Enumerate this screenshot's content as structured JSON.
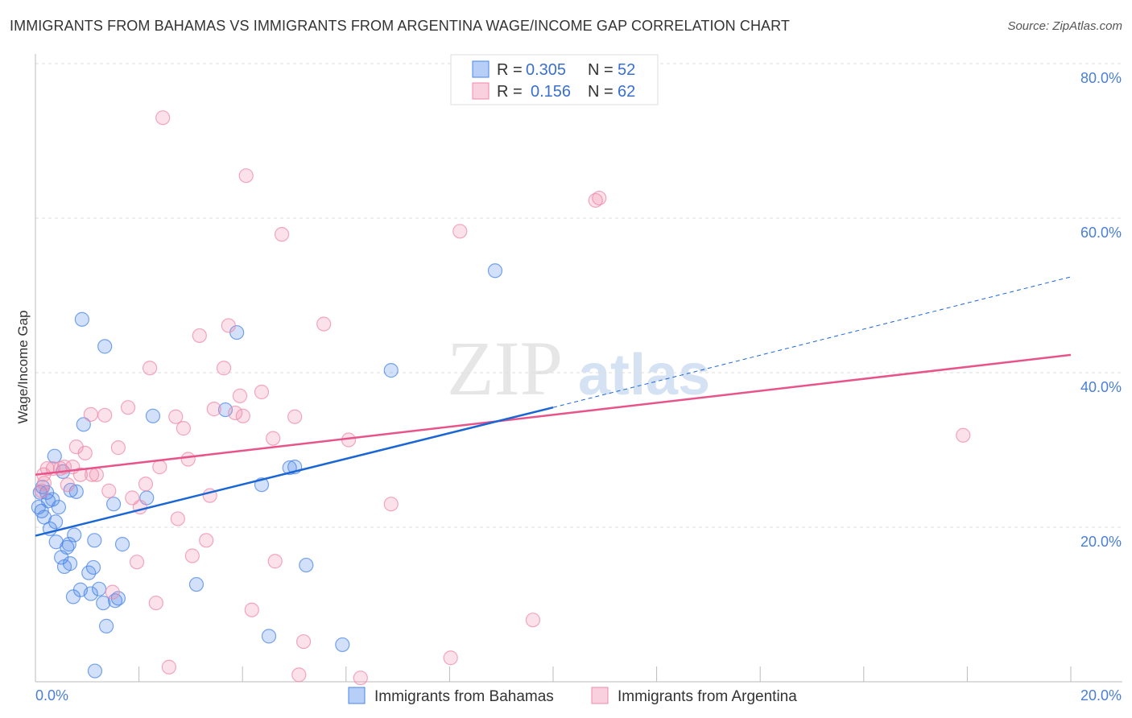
{
  "chart_data": {
    "type": "scatter",
    "title": "IMMIGRANTS FROM BAHAMAS VS IMMIGRANTS FROM ARGENTINA WAGE/INCOME GAP CORRELATION CHART",
    "source": "Source: ZipAtlas.com",
    "xlabel": "",
    "ylabel": "Wage/Income Gap",
    "xlim": [
      0,
      20
    ],
    "ylim": [
      0,
      80
    ],
    "x_tick_labels": [
      "0.0%",
      "20.0%"
    ],
    "y_ticks": [
      20,
      40,
      60,
      80
    ],
    "y_tick_labels": [
      "20.0%",
      "40.0%",
      "60.0%",
      "80.0%"
    ],
    "grid": true,
    "watermark": "ZIPatlas",
    "legend_stats": [
      {
        "r_label": "R = ",
        "r": "0.305",
        "n_label": "N = ",
        "n": "52"
      },
      {
        "r_label": "R = ",
        "r": "0.156",
        "n_label": "N = ",
        "n": "62"
      }
    ],
    "series": [
      {
        "name": "Immigrants from Bahamas",
        "color": "#4a86e8",
        "line_color": "#1a66d6",
        "trend": {
          "x0": 0,
          "y0": 18.9,
          "x_solid_end": 10,
          "y_solid_end": 35.5,
          "x1": 20,
          "y1": 52.4
        },
        "points": [
          [
            1.15,
            1.4
          ],
          [
            1.37,
            7.2
          ],
          [
            1.31,
            10.2
          ],
          [
            1.54,
            10.5
          ],
          [
            1.6,
            10.8
          ],
          [
            0.73,
            11.0
          ],
          [
            1.07,
            11.4
          ],
          [
            0.87,
            11.9
          ],
          [
            1.23,
            12.0
          ],
          [
            1.03,
            14.1
          ],
          [
            1.12,
            14.8
          ],
          [
            0.56,
            14.9
          ],
          [
            0.67,
            15.3
          ],
          [
            0.5,
            16.1
          ],
          [
            0.61,
            17.4
          ],
          [
            0.65,
            17.8
          ],
          [
            0.4,
            18.1
          ],
          [
            0.75,
            19.0
          ],
          [
            1.14,
            18.3
          ],
          [
            1.68,
            17.8
          ],
          [
            0.28,
            19.8
          ],
          [
            0.39,
            20.7
          ],
          [
            0.17,
            21.3
          ],
          [
            0.12,
            22.1
          ],
          [
            0.06,
            22.6
          ],
          [
            0.45,
            22.6
          ],
          [
            0.25,
            23.4
          ],
          [
            0.33,
            23.6
          ],
          [
            0.22,
            24.5
          ],
          [
            0.79,
            24.6
          ],
          [
            0.68,
            24.8
          ],
          [
            0.14,
            25.2
          ],
          [
            0.37,
            29.2
          ],
          [
            0.93,
            33.3
          ],
          [
            2.27,
            34.4
          ],
          [
            1.51,
            23.0
          ],
          [
            2.15,
            23.8
          ],
          [
            3.11,
            12.6
          ],
          [
            3.67,
            35.2
          ],
          [
            3.89,
            45.2
          ],
          [
            1.34,
            43.4
          ],
          [
            0.9,
            46.9
          ],
          [
            4.37,
            25.5
          ],
          [
            4.91,
            27.7
          ],
          [
            5.01,
            27.8
          ],
          [
            5.23,
            15.1
          ],
          [
            4.51,
            5.9
          ],
          [
            5.93,
            4.8
          ],
          [
            6.87,
            40.3
          ],
          [
            8.88,
            53.2
          ],
          [
            0.53,
            27.2
          ],
          [
            0.09,
            24.5
          ]
        ]
      },
      {
        "name": "Immigrants from Argentina",
        "color": "#f08aaa",
        "line_color": "#e8548a",
        "trend": {
          "x0": 0,
          "y0": 26.8,
          "x1": 20,
          "y1": 42.3
        },
        "points": [
          [
            2.46,
            73.0
          ],
          [
            4.07,
            65.5
          ],
          [
            4.76,
            57.9
          ],
          [
            10.82,
            62.3
          ],
          [
            10.89,
            62.6
          ],
          [
            8.2,
            58.3
          ],
          [
            5.57,
            46.3
          ],
          [
            3.73,
            46.1
          ],
          [
            3.17,
            44.8
          ],
          [
            2.21,
            40.6
          ],
          [
            3.64,
            40.6
          ],
          [
            1.79,
            35.5
          ],
          [
            1.34,
            34.5
          ],
          [
            1.07,
            34.6
          ],
          [
            2.71,
            34.3
          ],
          [
            3.45,
            35.3
          ],
          [
            3.86,
            34.8
          ],
          [
            4.01,
            34.4
          ],
          [
            3.95,
            37.0
          ],
          [
            4.37,
            37.5
          ],
          [
            5.01,
            34.3
          ],
          [
            2.86,
            32.8
          ],
          [
            4.59,
            31.5
          ],
          [
            6.05,
            31.3
          ],
          [
            0.79,
            30.4
          ],
          [
            1.6,
            30.3
          ],
          [
            0.96,
            29.6
          ],
          [
            2.95,
            28.8
          ],
          [
            0.23,
            27.6
          ],
          [
            0.34,
            27.6
          ],
          [
            0.48,
            27.6
          ],
          [
            0.56,
            27.8
          ],
          [
            0.72,
            27.8
          ],
          [
            0.87,
            26.8
          ],
          [
            1.18,
            26.8
          ],
          [
            1.09,
            26.8
          ],
          [
            2.4,
            27.8
          ],
          [
            0.17,
            25.7
          ],
          [
            0.62,
            25.5
          ],
          [
            1.42,
            24.7
          ],
          [
            2.13,
            25.6
          ],
          [
            1.87,
            23.8
          ],
          [
            2.02,
            22.6
          ],
          [
            3.37,
            24.1
          ],
          [
            6.87,
            23.0
          ],
          [
            2.75,
            21.1
          ],
          [
            3.3,
            18.3
          ],
          [
            1.96,
            15.5
          ],
          [
            3.03,
            16.3
          ],
          [
            4.63,
            15.6
          ],
          [
            1.49,
            11.6
          ],
          [
            2.33,
            10.2
          ],
          [
            4.18,
            9.3
          ],
          [
            9.61,
            8.0
          ],
          [
            5.18,
            5.2
          ],
          [
            2.58,
            1.9
          ],
          [
            5.09,
            0.9
          ],
          [
            6.28,
            0.5
          ],
          [
            8.02,
            3.1
          ],
          [
            17.92,
            31.9
          ],
          [
            0.16,
            26.8
          ],
          [
            0.12,
            24.7
          ]
        ]
      }
    ]
  }
}
